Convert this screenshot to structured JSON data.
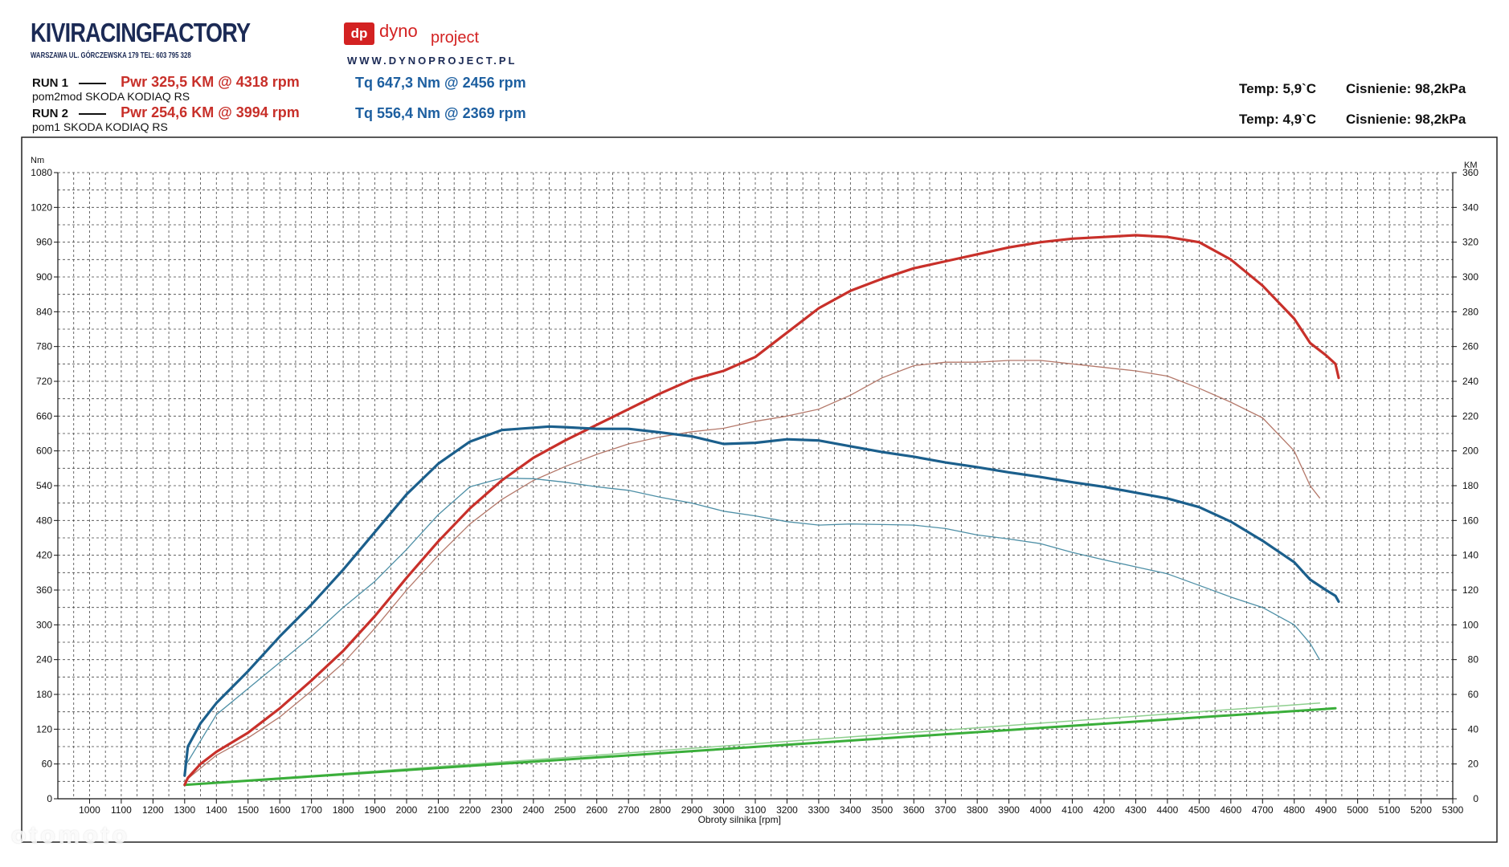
{
  "header": {
    "brand": "KIVIRACINGFACTORY",
    "brand_address": "WARSZAWA UL. GÓRCZEWSKA 179    TEL: 603 795 328",
    "dyno_box": "dp",
    "dyno_word1": "dyno",
    "dyno_word2": "project",
    "dyno_www": "WWW.DYNOPROJECT.PL"
  },
  "runs": [
    {
      "label": "RUN 1",
      "pwr": "Pwr  325,5 KM @ 4318 rpm",
      "tq": "Tq 647,3 Nm @ 2456 rpm",
      "desc": "pom2mod SKODA KODIAQ RS",
      "temp": "Temp: 5,9`C",
      "pressure": "Cisnienie: 98,2kPa"
    },
    {
      "label": "RUN 2",
      "pwr": "Pwr  254,6 KM @ 3994 rpm",
      "tq": "Tq 556,4 Nm @ 2369 rpm",
      "desc": "pom1 SKODA KODIAQ RS",
      "temp": "Temp: 4,9`C",
      "pressure": "Cisnienie: 98,2kPa"
    }
  ],
  "watermark": "otomoto",
  "colors": {
    "power_run1": "#c8302a",
    "power_run2": "#b4786a",
    "torque_run1": "#1b5f8c",
    "torque_run2": "#4d8fa6",
    "speed_run1": "#3aae3a",
    "speed_run2": "#8fcf8f",
    "grid": "#444444"
  },
  "chart_data": {
    "type": "line",
    "xlabel": "Obroty silnika [rpm]",
    "y_left_label": "Nm",
    "y_right_label": "KM",
    "xlim": [
      900,
      5300
    ],
    "y_left_lim": [
      0,
      1080
    ],
    "y_right_lim": [
      0,
      360
    ],
    "x_ticks": [
      1000,
      1100,
      1200,
      1300,
      1400,
      1500,
      1600,
      1700,
      1800,
      1900,
      2000,
      2100,
      2200,
      2300,
      2400,
      2500,
      2600,
      2700,
      2800,
      2900,
      3000,
      3100,
      3200,
      3300,
      3400,
      3500,
      3600,
      3700,
      3800,
      3900,
      4000,
      4100,
      4200,
      4300,
      4400,
      4500,
      4600,
      4700,
      4800,
      4900,
      5000,
      5100,
      5200,
      5300
    ],
    "y_left_ticks": [
      0,
      60,
      120,
      180,
      240,
      300,
      360,
      420,
      480,
      540,
      600,
      660,
      720,
      780,
      840,
      900,
      960,
      1020,
      1080
    ],
    "y_right_ticks": [
      0,
      20,
      40,
      60,
      80,
      100,
      120,
      140,
      160,
      180,
      200,
      220,
      240,
      260,
      280,
      300,
      320,
      340,
      360
    ],
    "grid": true,
    "series": [
      {
        "name": "RUN 1",
        "axis": "right",
        "x": [
          1300,
          1310,
          1350,
          1400,
          1500,
          1600,
          1700,
          1800,
          1900,
          2000,
          2100,
          2200,
          2300,
          2400,
          2500,
          2600,
          2700,
          2800,
          2900,
          3000,
          3100,
          3200,
          3300,
          3400,
          3500,
          3600,
          3700,
          3800,
          3900,
          4000,
          4100,
          4200,
          4300,
          4400,
          4500,
          4600,
          4700,
          4800,
          4850,
          4900,
          4930,
          4940
        ],
        "values": [
          8,
          12,
          20,
          27,
          38,
          52,
          68,
          85,
          105,
          127,
          148,
          167,
          183,
          196,
          206,
          215,
          224,
          233,
          241,
          246,
          254,
          268,
          282,
          292,
          299,
          305,
          309,
          313,
          317,
          320,
          322,
          323,
          324,
          323,
          320,
          310,
          295,
          276,
          262,
          255,
          250,
          242
        ]
      },
      {
        "name": "RUN 2",
        "axis": "right",
        "x": [
          1300,
          1400,
          1500,
          1600,
          1700,
          1800,
          1900,
          2000,
          2100,
          2200,
          2300,
          2400,
          2500,
          2600,
          2700,
          2800,
          2900,
          3000,
          3100,
          3200,
          3300,
          3400,
          3500,
          3600,
          3700,
          3800,
          3900,
          4000,
          4100,
          4200,
          4300,
          4400,
          4500,
          4600,
          4700,
          4800,
          4850,
          4880
        ],
        "values": [
          10,
          25,
          35,
          47,
          62,
          78,
          98,
          120,
          140,
          158,
          172,
          183,
          191,
          198,
          204,
          208,
          211,
          213,
          217,
          220,
          224,
          232,
          242,
          249,
          251,
          251,
          252,
          252,
          250,
          248,
          246,
          243,
          236,
          228,
          219,
          200,
          180,
          173
        ]
      },
      {
        "name": "RUN 1",
        "axis": "left",
        "x": [
          1300,
          1310,
          1350,
          1400,
          1500,
          1600,
          1700,
          1800,
          1900,
          2000,
          2100,
          2200,
          2300,
          2400,
          2450,
          2500,
          2600,
          2700,
          2800,
          2900,
          3000,
          3100,
          3200,
          3300,
          3400,
          3500,
          3600,
          3700,
          3800,
          3900,
          4000,
          4100,
          4200,
          4300,
          4400,
          4500,
          4600,
          4700,
          4800,
          4850,
          4900,
          4930,
          4940
        ],
        "values": [
          40,
          90,
          130,
          165,
          220,
          280,
          335,
          395,
          460,
          525,
          578,
          616,
          636,
          640,
          642,
          641,
          638,
          638,
          632,
          625,
          612,
          614,
          620,
          618,
          608,
          598,
          590,
          580,
          572,
          563,
          555,
          546,
          538,
          528,
          518,
          503,
          478,
          445,
          408,
          378,
          360,
          350,
          340
        ]
      },
      {
        "name": "RUN 2",
        "axis": "left",
        "x": [
          1300,
          1400,
          1500,
          1600,
          1700,
          1800,
          1900,
          2000,
          2100,
          2200,
          2300,
          2400,
          2500,
          2600,
          2700,
          2800,
          2900,
          3000,
          3100,
          3200,
          3300,
          3400,
          3500,
          3600,
          3700,
          3800,
          3900,
          4000,
          4100,
          4200,
          4300,
          4400,
          4500,
          4600,
          4700,
          4800,
          4850,
          4880
        ],
        "values": [
          55,
          145,
          190,
          235,
          280,
          330,
          375,
          430,
          490,
          538,
          553,
          552,
          546,
          538,
          532,
          520,
          510,
          496,
          488,
          478,
          472,
          474,
          473,
          472,
          466,
          455,
          448,
          440,
          425,
          412,
          400,
          388,
          368,
          348,
          330,
          300,
          268,
          240
        ]
      },
      {
        "name": "RUN 1",
        "axis": "right",
        "x": [
          1300,
          4930
        ],
        "values": [
          8,
          52
        ]
      },
      {
        "name": "RUN 2",
        "axis": "right",
        "x": [
          1300,
          4880
        ],
        "values": [
          8,
          55
        ]
      }
    ]
  }
}
